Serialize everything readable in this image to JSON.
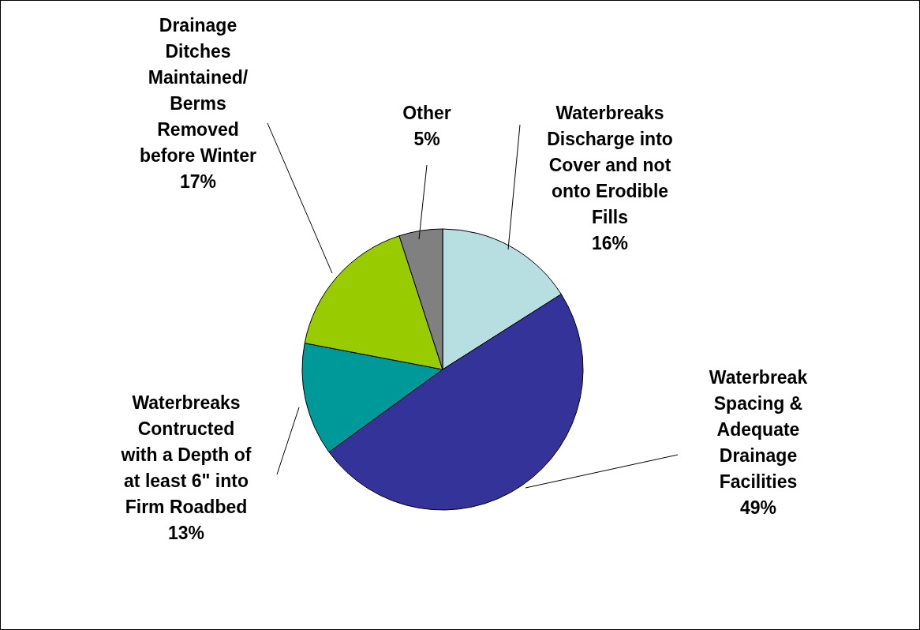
{
  "chart_data": {
    "type": "pie",
    "categories": [
      "Waterbreaks\nDischarge into\nCover and not\nonto Erodible\nFills",
      "Waterbreak\nSpacing &\nAdequate\nDrainage\nFacilities",
      "Waterbreaks\nContructed\nwith a Depth of\nat least 6\" into\nFirm Roadbed",
      "Drainage\nDitches\nMaintained/\nBerms\nRemoved\nbefore Winter",
      "Other"
    ],
    "values": [
      16,
      49,
      13,
      17,
      5
    ],
    "value_labels": [
      "16%",
      "49%",
      "13%",
      "17%",
      "5%"
    ],
    "colors": [
      "#b7dfe2",
      "#333399",
      "#009999",
      "#99cc00",
      "#808080"
    ],
    "legend": false
  }
}
